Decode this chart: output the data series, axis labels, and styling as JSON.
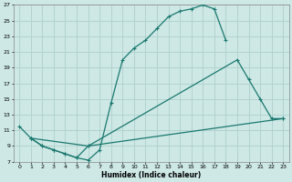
{
  "bg_color": "#cde8e5",
  "grid_color": "#aed0cc",
  "line_color": "#1a7870",
  "xlabel": "Humidex (Indice chaleur)",
  "xlim": [
    -0.5,
    23.5
  ],
  "ylim": [
    7,
    27
  ],
  "xticks": [
    0,
    1,
    2,
    3,
    4,
    5,
    6,
    7,
    8,
    9,
    10,
    11,
    12,
    13,
    14,
    15,
    16,
    17,
    18,
    19,
    20,
    21,
    22,
    23
  ],
  "yticks": [
    7,
    9,
    11,
    13,
    15,
    17,
    19,
    21,
    23,
    25,
    27
  ],
  "line1": {
    "x": [
      0,
      1,
      2,
      3,
      4,
      5,
      6,
      7,
      8,
      9,
      10,
      11,
      12,
      13,
      14,
      15,
      16,
      17,
      18
    ],
    "y": [
      11.5,
      10.0,
      9.0,
      8.5,
      8.0,
      7.5,
      7.2,
      8.5,
      14.5,
      20.0,
      21.5,
      22.5,
      24.0,
      25.5,
      26.2,
      26.5,
      27.0,
      26.5,
      22.5
    ]
  },
  "line2": {
    "x": [
      1,
      2,
      3,
      4,
      5,
      6,
      19,
      20,
      21,
      22,
      23
    ],
    "y": [
      10.0,
      9.0,
      8.5,
      8.0,
      7.5,
      9.0,
      20.0,
      17.5,
      15.0,
      12.5,
      12.5
    ]
  },
  "line3": {
    "x": [
      1,
      6,
      23
    ],
    "y": [
      10.0,
      9.0,
      12.5
    ]
  }
}
